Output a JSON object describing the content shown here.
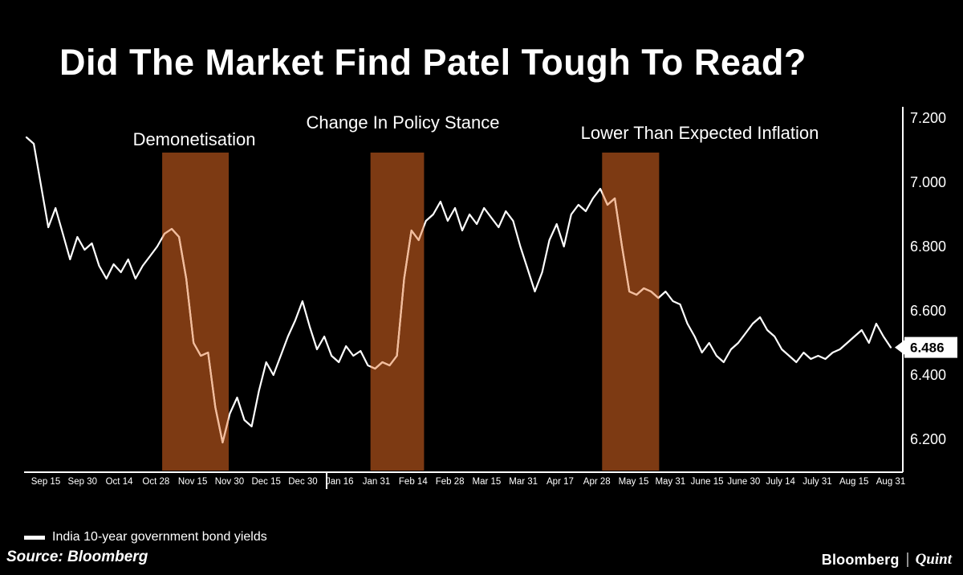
{
  "title": "Did The Market Find Patel Tough To Read?",
  "annotations": [
    {
      "label": "Demonetisation"
    },
    {
      "label": "Change In Policy Stance"
    },
    {
      "label": "Lower Than Expected Inflation"
    }
  ],
  "chart_data": {
    "type": "line",
    "title": "Did The Market Find Patel Tough To Read?",
    "xlabel": "",
    "ylabel": "",
    "grid": false,
    "legend_position": "bottom-left",
    "x_tick_labels": [
      "Sep 15",
      "Sep 30",
      "Oct 14",
      "Oct 28",
      "Nov 15",
      "Nov 30",
      "Dec 15",
      "Dec 30",
      "Jan 16",
      "Jan 31",
      "Feb 14",
      "Feb 28",
      "Mar 15",
      "Mar 31",
      "Apr 17",
      "Apr 28",
      "May 15",
      "May 31",
      "June 15",
      "June 30",
      "July 14",
      "July 31",
      "Aug 15",
      "Aug 31"
    ],
    "y_ticks": [
      7.2,
      7.0,
      6.8,
      6.6,
      6.4,
      6.2
    ],
    "y_tick_labels": [
      "7.200",
      "7.000",
      "6.800",
      "6.600",
      "6.400",
      "6.200"
    ],
    "ylim": [
      6.1,
      7.25
    ],
    "series": [
      {
        "name": "India 10-year government bond yields",
        "color": "#ffffff",
        "values": [
          7.14,
          7.12,
          6.99,
          6.86,
          6.92,
          6.84,
          6.76,
          6.83,
          6.79,
          6.81,
          6.74,
          6.7,
          6.745,
          6.72,
          6.76,
          6.7,
          6.74,
          6.77,
          6.8,
          6.84,
          6.855,
          6.83,
          6.7,
          6.5,
          6.46,
          6.47,
          6.3,
          6.19,
          6.28,
          6.33,
          6.26,
          6.24,
          6.35,
          6.44,
          6.4,
          6.46,
          6.52,
          6.57,
          6.63,
          6.55,
          6.48,
          6.52,
          6.46,
          6.44,
          6.49,
          6.46,
          6.475,
          6.43,
          6.42,
          6.44,
          6.43,
          6.46,
          6.7,
          6.85,
          6.82,
          6.88,
          6.9,
          6.94,
          6.88,
          6.92,
          6.85,
          6.9,
          6.87,
          6.92,
          6.89,
          6.86,
          6.91,
          6.88,
          6.8,
          6.73,
          6.66,
          6.72,
          6.82,
          6.87,
          6.8,
          6.9,
          6.93,
          6.91,
          6.95,
          6.98,
          6.93,
          6.95,
          6.8,
          6.66,
          6.65,
          6.67,
          6.66,
          6.64,
          6.66,
          6.63,
          6.62,
          6.56,
          6.52,
          6.47,
          6.5,
          6.46,
          6.44,
          6.48,
          6.5,
          6.53,
          6.56,
          6.58,
          6.54,
          6.52,
          6.48,
          6.46,
          6.44,
          6.47,
          6.45,
          6.46,
          6.45,
          6.47,
          6.48,
          6.5,
          6.52,
          6.54,
          6.5,
          6.56,
          6.52,
          6.486
        ]
      }
    ],
    "bands": [
      {
        "label": "Demonetisation",
        "x_from": 0.157,
        "x_to": 0.234,
        "color": "#7d3a13"
      },
      {
        "label": "Change In Policy Stance",
        "x_from": 0.398,
        "x_to": 0.46,
        "color": "#7d3a13"
      },
      {
        "label": "Lower Than Expected Inflation",
        "x_from": 0.666,
        "x_to": 0.732,
        "color": "#7d3a13"
      }
    ],
    "highlight_line_color": "#f3bc9b",
    "axis_color": "#ffffff",
    "last_value": 6.486,
    "last_value_label": "6.486"
  },
  "legend": {
    "label": "India 10-year government bond yields",
    "swatch_color": "#ffffff"
  },
  "source": "Source: Bloomberg",
  "footer": {
    "bloomberg": "Bloomberg",
    "quint": "Quint"
  }
}
